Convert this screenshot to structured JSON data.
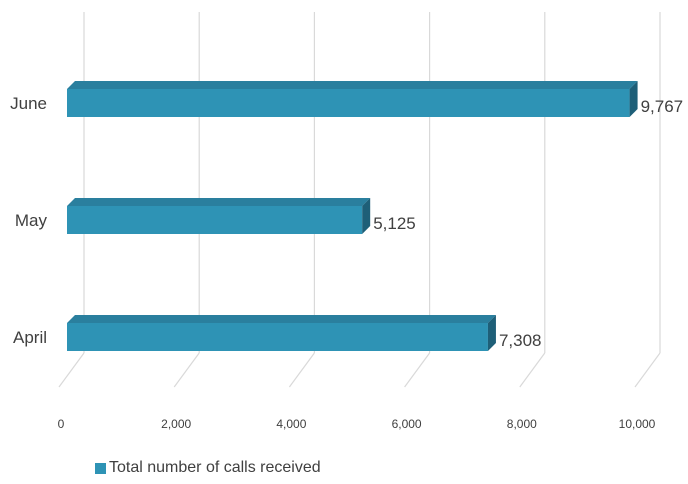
{
  "chart_data": {
    "type": "bar",
    "orientation": "horizontal",
    "categories": [
      "June",
      "May",
      "April"
    ],
    "series": [
      {
        "name": "Total number of calls received",
        "values": [
          9767,
          5125,
          7308
        ]
      }
    ],
    "value_labels": [
      "9,767",
      "5,125",
      "7,308"
    ],
    "x_ticks": [
      "0",
      "2,000",
      "4,000",
      "6,000",
      "8,000",
      "10,000"
    ],
    "xlim": [
      0,
      10000
    ],
    "grid": true,
    "legend_position": "bottom-left",
    "bar_color": "#2e93b5",
    "title": "",
    "xlabel": "",
    "ylabel": ""
  }
}
